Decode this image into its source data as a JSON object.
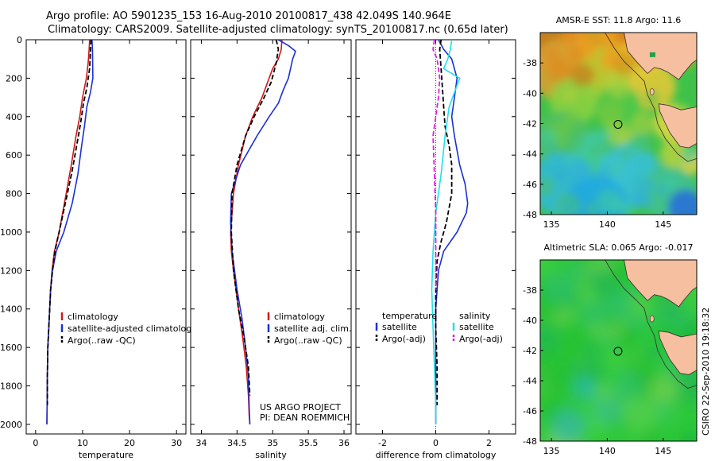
{
  "header": {
    "line1": "Argo profile: AO 5901235_153 16-Aug-2010 20100817_438 42.049S 140.964E",
    "line2": "Climatology: CARS2009. Satellite-adjusted climatology: synTS_20100817.nc (0.65d later)"
  },
  "credit": "CSIRO 22-Sep-2010 19:18:32",
  "colors": {
    "climatology": "#d01818",
    "satellite": "#1a2fd6",
    "argo": "#000000",
    "satellite_diff": "#20e0e8",
    "argo_adj": "#e020e0",
    "land": "#f5bfa0",
    "coast": "#3a2a2a"
  },
  "chart_data": [
    {
      "type": "line",
      "xlabel": "temperature",
      "xlim": [
        -2,
        32
      ],
      "ylim": [
        2050,
        0
      ],
      "xticks": [
        "0",
        "10",
        "20",
        "30"
      ],
      "xtick_values": [
        0,
        10,
        20,
        30
      ],
      "yticks": [
        "0",
        "200",
        "400",
        "600",
        "800",
        "1000",
        "1200",
        "1400",
        "1600",
        "1800",
        "2000"
      ],
      "ytick_values": [
        0,
        200,
        400,
        600,
        800,
        1000,
        1200,
        1400,
        1600,
        1800,
        2000
      ],
      "legend": [
        "climatology",
        "satellite-adjusted climatology",
        "Argo(..raw -QC)"
      ],
      "legend_placement": "lower-right",
      "series": [
        {
          "name": "climatology",
          "color": "#d01818",
          "dash": "",
          "x": [
            11.5,
            11.4,
            11.2,
            10.8,
            10.0,
            9.4,
            8.6,
            7.6,
            6.5,
            5.0,
            4.0,
            3.5,
            3.2,
            2.8,
            2.6,
            2.5,
            2.45,
            2.4
          ],
          "y": [
            0,
            50,
            120,
            200,
            300,
            400,
            500,
            650,
            800,
            1000,
            1100,
            1200,
            1300,
            1500,
            1600,
            1750,
            1900,
            2000
          ]
        },
        {
          "name": "satellite-adjusted climatology",
          "color": "#1a2fd6",
          "dash": "",
          "x": [
            12.0,
            12.1,
            12.2,
            11.7,
            10.9,
            10.4,
            9.8,
            9.0,
            7.8,
            6.0,
            4.4,
            3.6,
            3.2,
            2.8,
            2.6,
            2.5,
            2.45,
            2.4
          ],
          "y": [
            0,
            50,
            200,
            270,
            350,
            450,
            550,
            700,
            850,
            1000,
            1100,
            1200,
            1300,
            1500,
            1600,
            1750,
            1900,
            2000
          ]
        },
        {
          "name": "Argo(..raw -QC)",
          "color": "#000000",
          "dash": "6,3",
          "x": [
            11.8,
            11.7,
            11.5,
            10.9,
            10.2,
            9.6,
            8.9,
            7.8,
            6.6,
            5.0,
            4.1,
            3.6,
            3.2,
            2.8,
            2.6,
            2.5,
            2.5
          ],
          "y": [
            0,
            50,
            150,
            250,
            330,
            430,
            530,
            680,
            820,
            1000,
            1100,
            1200,
            1300,
            1500,
            1600,
            1750,
            1900
          ]
        }
      ]
    },
    {
      "type": "line",
      "xlabel": "salinity",
      "xlim": [
        33.85,
        36.1
      ],
      "ylim": [
        2050,
        0
      ],
      "xticks": [
        "34",
        "34.5",
        "35",
        "35.5",
        "36"
      ],
      "xtick_values": [
        34,
        34.5,
        35,
        35.5,
        36
      ],
      "legend": [
        "climatology",
        "satellite adj. clim.",
        "Argo(..raw -QC)"
      ],
      "legend_placement": "lower-right",
      "annotation": [
        "US ARGO PROJECT",
        "PI: DEAN ROEMMICH"
      ],
      "series": [
        {
          "name": "climatology",
          "color": "#d01818",
          "dash": "",
          "x": [
            35.13,
            35.12,
            35.08,
            35.0,
            34.85,
            34.72,
            34.62,
            34.52,
            34.45,
            34.41,
            34.42,
            34.45,
            34.52,
            34.58,
            34.63,
            34.66,
            34.67,
            34.68
          ],
          "y": [
            0,
            50,
            100,
            150,
            300,
            400,
            500,
            650,
            800,
            1000,
            1100,
            1200,
            1400,
            1550,
            1700,
            1850,
            1950,
            2000
          ]
        },
        {
          "name": "satellite adj. clim.",
          "color": "#1a2fd6",
          "dash": "",
          "x": [
            35.08,
            35.22,
            35.32,
            35.28,
            35.22,
            35.15,
            35.08,
            34.95,
            34.78,
            34.55,
            34.42,
            34.41,
            34.43,
            34.5,
            34.57,
            34.62,
            34.66,
            34.67,
            34.68
          ],
          "y": [
            0,
            30,
            60,
            100,
            200,
            260,
            330,
            400,
            500,
            650,
            800,
            950,
            1100,
            1300,
            1450,
            1600,
            1750,
            1900,
            2000
          ]
        },
        {
          "name": "Argo(..raw -QC)",
          "color": "#000000",
          "dash": "6,3",
          "x": [
            35.05,
            35.08,
            35.05,
            34.98,
            34.88,
            34.74,
            34.62,
            34.5,
            34.43,
            34.42,
            34.45,
            34.52,
            34.6,
            34.66,
            34.68
          ],
          "y": [
            0,
            50,
            120,
            220,
            300,
            400,
            500,
            650,
            800,
            1000,
            1200,
            1400,
            1550,
            1700,
            1850
          ]
        }
      ]
    },
    {
      "type": "line",
      "xlabel": "difference from climatology",
      "xlim": [
        -3,
        3
      ],
      "ylim": [
        2050,
        0
      ],
      "xticks": [
        "-2",
        "0",
        "2"
      ],
      "xtick_values": [
        -2,
        0,
        2
      ],
      "legend": [
        "temperature",
        "satellite",
        "Argo(-adj)",
        "salinity",
        "satellite",
        "Argo(-adj)"
      ],
      "legend_placement": "lower-center",
      "series": [
        {
          "name": "satellite",
          "group": "temperature",
          "color": "#1a2fd6",
          "dash": "",
          "x": [
            0.1,
            0.3,
            0.6,
            0.8,
            0.7,
            0.6,
            0.7,
            0.9,
            1.1,
            1.2,
            1.15,
            0.8,
            0.3,
            0.1,
            0.0,
            0.0,
            0.0,
            0.0
          ],
          "y": [
            0,
            50,
            100,
            200,
            300,
            400,
            500,
            650,
            750,
            850,
            900,
            1000,
            1100,
            1200,
            1400,
            1600,
            1800,
            2000
          ]
        },
        {
          "name": "Argo(-adj)",
          "group": "temperature",
          "color": "#000000",
          "dash": "6,3",
          "x": [
            0.2,
            0.15,
            0.2,
            0.25,
            0.3,
            0.35,
            0.5,
            0.6,
            0.6,
            0.4,
            0.2,
            0.05,
            0.0,
            0.0,
            0.05,
            0.05
          ],
          "y": [
            0,
            50,
            150,
            250,
            350,
            450,
            550,
            650,
            800,
            950,
            1050,
            1150,
            1300,
            1500,
            1700,
            1900
          ]
        },
        {
          "name": "satellite",
          "group": "salinity",
          "color": "#20e0e8",
          "dash": "",
          "x": [
            0.6,
            0.55,
            0.45,
            0.3,
            0.9,
            0.5,
            0.35,
            0.2,
            0.0,
            -0.1,
            -0.15,
            -0.1,
            -0.05,
            0.0,
            0.0
          ],
          "y": [
            0,
            50,
            100,
            150,
            200,
            350,
            500,
            700,
            900,
            1100,
            1300,
            1500,
            1700,
            1900,
            2000
          ]
        },
        {
          "name": "Argo(-adj)",
          "group": "salinity",
          "color": "#e020e0",
          "dash": "6,3",
          "x": [
            -0.05,
            -0.1,
            0.05,
            0.15,
            0.1,
            0.0,
            -0.1,
            -0.05,
            0.0,
            0.0,
            0.0
          ],
          "y": [
            0,
            50,
            100,
            200,
            300,
            400,
            500,
            700,
            900,
            1100,
            1300
          ]
        }
      ]
    },
    {
      "type": "heatmap",
      "title": "AMSR-E SST: 11.8 Argo: 11.6",
      "xlim": [
        134,
        148
      ],
      "ylim": [
        -48,
        -36
      ],
      "xticks": [
        "135",
        "140",
        "145"
      ],
      "xtick_values": [
        135,
        140,
        145
      ],
      "yticks": [
        "-38",
        "-40",
        "-42",
        "-44",
        "-46",
        "-48"
      ],
      "ytick_values": [
        -38,
        -40,
        -42,
        -44,
        -46,
        -48
      ],
      "marker": {
        "lon": 140.96,
        "lat": -42.05
      }
    },
    {
      "type": "heatmap",
      "title": "Altimetric SLA: 0.065 Argo: -0.017",
      "xlim": [
        134,
        148
      ],
      "ylim": [
        -48,
        -36
      ],
      "xticks": [
        "135",
        "140",
        "145"
      ],
      "xtick_values": [
        135,
        140,
        145
      ],
      "yticks": [
        "-38",
        "-40",
        "-42",
        "-44",
        "-46",
        "-48"
      ],
      "ytick_values": [
        -38,
        -40,
        -42,
        -44,
        -46,
        -48
      ],
      "marker": {
        "lon": 140.96,
        "lat": -42.05
      }
    }
  ]
}
